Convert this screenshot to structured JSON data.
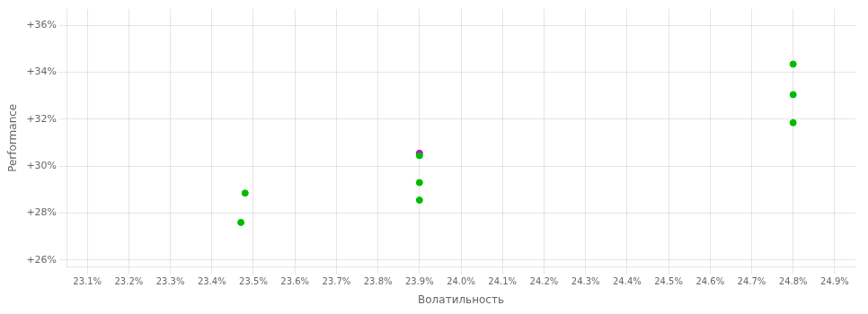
{
  "chart_data": {
    "type": "scatter",
    "xlabel": "Волатильность",
    "ylabel": "Performance",
    "x": [
      23.48,
      23.47,
      23.9,
      23.9,
      23.9,
      23.9,
      24.8,
      24.8,
      24.8
    ],
    "values": [
      28.85,
      27.6,
      30.55,
      30.45,
      29.3,
      28.55,
      34.35,
      33.05,
      31.85
    ],
    "colors": [
      "#00bb00",
      "#00bb00",
      "#cc00cc",
      "#00bb00",
      "#00bb00",
      "#00bb00",
      "#00bb00",
      "#00bb00",
      "#00bb00"
    ],
    "xlim": [
      23.05,
      24.95
    ],
    "ylim": [
      25.7,
      36.7
    ],
    "xticks": [
      {
        "value": 23.1,
        "label": "23.1%"
      },
      {
        "value": 23.2,
        "label": "23.2%"
      },
      {
        "value": 23.3,
        "label": "23.3%"
      },
      {
        "value": 23.4,
        "label": "23.4%"
      },
      {
        "value": 23.5,
        "label": "23.5%"
      },
      {
        "value": 23.6,
        "label": "23.6%"
      },
      {
        "value": 23.7,
        "label": "23.7%"
      },
      {
        "value": 23.8,
        "label": "23.8%"
      },
      {
        "value": 23.9,
        "label": "23.9%"
      },
      {
        "value": 24.0,
        "label": "24.0%"
      },
      {
        "value": 24.1,
        "label": "24.1%"
      },
      {
        "value": 24.2,
        "label": "24.2%"
      },
      {
        "value": 24.3,
        "label": "24.3%"
      },
      {
        "value": 24.4,
        "label": "24.4%"
      },
      {
        "value": 24.5,
        "label": "24.5%"
      },
      {
        "value": 24.6,
        "label": "24.6%"
      },
      {
        "value": 24.7,
        "label": "24.7%"
      },
      {
        "value": 24.8,
        "label": "24.8%"
      },
      {
        "value": 24.9,
        "label": "24.9%"
      }
    ],
    "yticks": [
      {
        "value": 26,
        "label": "+26%"
      },
      {
        "value": 28,
        "label": "+28%"
      },
      {
        "value": 30,
        "label": "+30%"
      },
      {
        "value": 32,
        "label": "+32%"
      },
      {
        "value": 34,
        "label": "+34%"
      },
      {
        "value": 36,
        "label": "+36%"
      }
    ],
    "grid": true
  }
}
